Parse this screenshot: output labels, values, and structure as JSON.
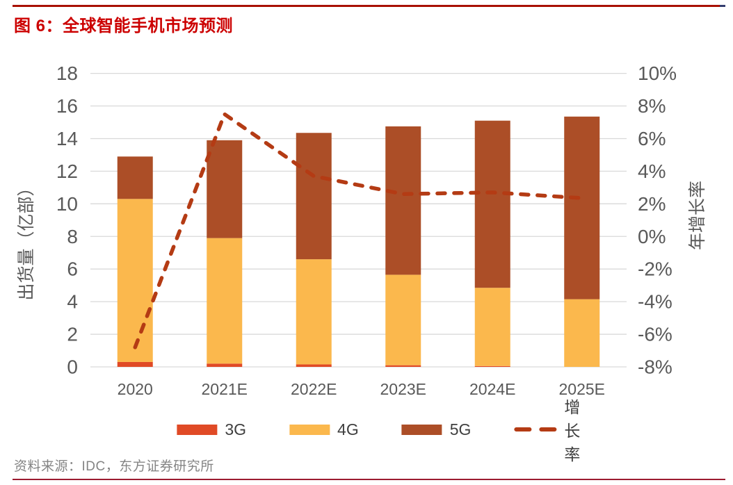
{
  "figure": {
    "title": "图 6：全球智能手机市场预测",
    "source": "资料来源：IDC，东方证券研究所"
  },
  "colors": {
    "title_red": "#cc0000",
    "top_rule_red": "#a81000",
    "top_rule_tip_navy": "#343d6e",
    "bottom_rule_red": "#9c1b30",
    "gridline_gray": "#d9d9d9",
    "axis_text_gray": "#595959",
    "legend_text_gray": "#3f3f3f",
    "source_text_gray": "#848484"
  },
  "chart_data": {
    "type": "bar",
    "subtype": "stacked-bar-with-line",
    "categories": [
      "2020",
      "2021E",
      "2022E",
      "2023E",
      "2024E",
      "2025E"
    ],
    "bar_series": [
      {
        "name": "3G",
        "color": "#e04a26",
        "values": [
          0.3,
          0.2,
          0.15,
          0.1,
          0.05,
          0
        ]
      },
      {
        "name": "4G",
        "color": "#fbb84d",
        "values": [
          10.0,
          7.7,
          6.45,
          5.55,
          4.8,
          4.15
        ]
      },
      {
        "name": "5G",
        "color": "#ac4e27",
        "values": [
          2.6,
          6.0,
          7.75,
          9.1,
          10.25,
          11.2
        ]
      }
    ],
    "bar_totals": [
      12.9,
      13.9,
      14.35,
      14.75,
      15.1,
      15.35
    ],
    "line_series": {
      "name": "增长率",
      "color": "#b43b14",
      "style": "dashed",
      "axis": "right",
      "values_pct": [
        -6.8,
        7.5,
        3.7,
        2.6,
        2.7,
        2.35
      ]
    },
    "left_axis": {
      "label": "出货量（亿部）",
      "min": 0,
      "max": 18,
      "step": 2
    },
    "right_axis": {
      "label": "年增长率",
      "min": -8,
      "max": 10,
      "step": 2,
      "suffix": "%"
    },
    "grid": true,
    "legend_position": "bottom"
  }
}
